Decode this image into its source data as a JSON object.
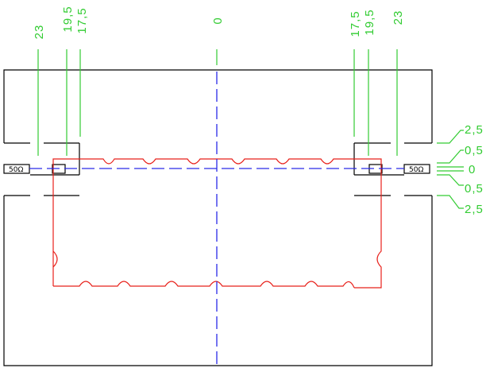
{
  "dimensions": {
    "left": {
      "d23": "23",
      "d195": "19,5",
      "d175": "17,5"
    },
    "center": "0",
    "right": {
      "d175": "17,5",
      "d195": "19,5",
      "d23": "23"
    }
  },
  "side_dimensions": {
    "top_outer": "2,5",
    "top_inner": "0,5",
    "center": "0",
    "bottom_inner": "0,5",
    "bottom_outer": "2,5"
  },
  "ports": {
    "left": "50Ω",
    "right": "50Ω"
  },
  "colors": {
    "enclosure": "#000000",
    "filter": "#e8201a",
    "dimension": "#33cc33",
    "axis": "#2a2ae8"
  }
}
